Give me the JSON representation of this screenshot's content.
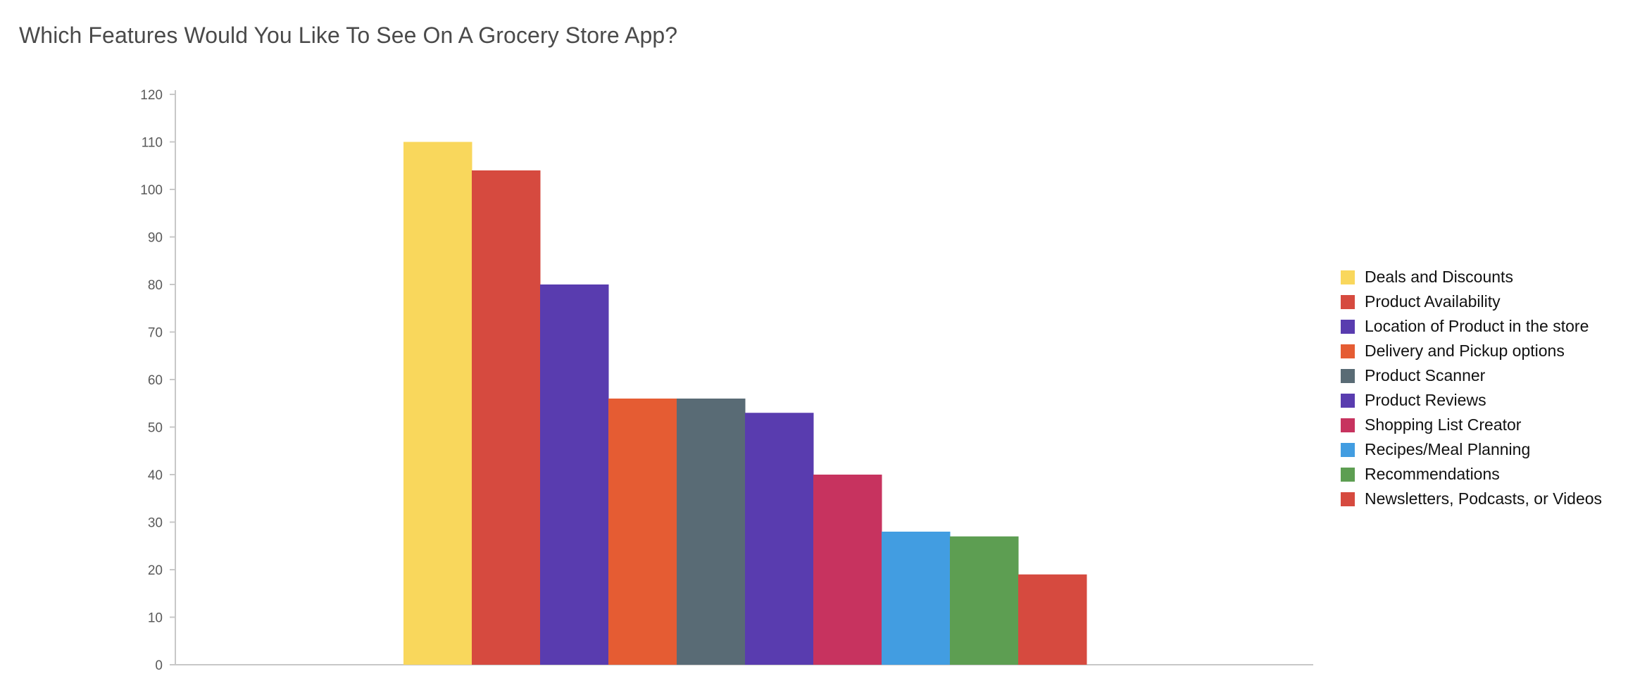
{
  "chart_data": {
    "type": "bar",
    "title": "Which Features Would You Like To See On A Grocery Store App?",
    "xlabel": "",
    "ylabel": "",
    "ylim": [
      0,
      120
    ],
    "yticks": [
      0,
      10,
      20,
      30,
      40,
      50,
      60,
      70,
      80,
      90,
      100,
      110,
      120
    ],
    "grid": false,
    "legend_position": "right",
    "categories": [
      "Deals and Discounts",
      "Product Availability",
      "Location of Product in the store",
      "Delivery and Pickup options",
      "Product Scanner",
      "Product Reviews",
      "Shopping List Creator",
      "Recipes/Meal Planning",
      "Recommendations",
      "Newsletters, Podcasts, or Videos"
    ],
    "values": [
      110,
      104,
      80,
      56,
      56,
      53,
      40,
      28,
      27,
      19
    ],
    "colors": [
      "#f9d75c",
      "#d64a3f",
      "#593caf",
      "#e55c33",
      "#596b75",
      "#593caf",
      "#c7335f",
      "#429de1",
      "#5d9e52",
      "#d64a3f"
    ]
  }
}
